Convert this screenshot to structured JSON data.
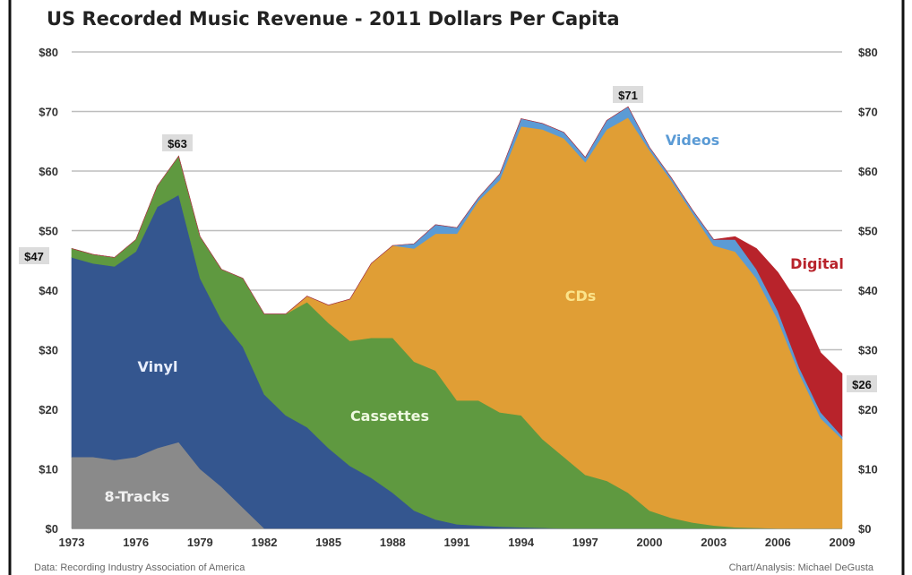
{
  "chart_data": {
    "type": "area",
    "stacked": true,
    "title": "US Recorded Music Revenue - 2011 Dollars Per Capita",
    "xlabel": "",
    "ylabel": "",
    "ylim": [
      0,
      80
    ],
    "xlim": [
      1973,
      2009
    ],
    "grid": true,
    "y_ticks": [
      "$0",
      "$10",
      "$20",
      "$30",
      "$40",
      "$50",
      "$60",
      "$70",
      "$80"
    ],
    "x_ticks": [
      "1973",
      "1976",
      "1979",
      "1982",
      "1985",
      "1988",
      "1991",
      "1994",
      "1997",
      "2000",
      "2003",
      "2006",
      "2009"
    ],
    "x": [
      1973,
      1974,
      1975,
      1976,
      1977,
      1978,
      1979,
      1980,
      1981,
      1982,
      1983,
      1984,
      1985,
      1986,
      1987,
      1988,
      1989,
      1990,
      1991,
      1992,
      1993,
      1994,
      1995,
      1996,
      1997,
      1998,
      1999,
      2000,
      2001,
      2002,
      2003,
      2004,
      2005,
      2006,
      2007,
      2008,
      2009
    ],
    "series": [
      {
        "name": "8-Tracks",
        "color": "#8a8a8a",
        "label_color": "#f0f0f0",
        "values": [
          12,
          12,
          11.5,
          12,
          13.5,
          14.5,
          10,
          7,
          3.5,
          0,
          0,
          0,
          0,
          0,
          0,
          0,
          0,
          0,
          0,
          0,
          0,
          0,
          0,
          0,
          0,
          0,
          0,
          0,
          0,
          0,
          0,
          0,
          0,
          0,
          0,
          0,
          0
        ]
      },
      {
        "name": "Vinyl",
        "color": "#34568f",
        "label_color": "#e8eefc",
        "values": [
          33.5,
          32.5,
          32.5,
          34.5,
          40.5,
          41.5,
          32,
          28,
          27,
          22.5,
          19,
          17,
          13.5,
          10.5,
          8.5,
          6,
          3,
          1.5,
          0.7,
          0.5,
          0.3,
          0.2,
          0.1,
          0,
          0,
          0,
          0,
          0,
          0,
          0,
          0,
          0,
          0,
          0,
          0,
          0,
          0
        ]
      },
      {
        "name": "Cassettes",
        "color": "#5f9940",
        "label_color": "#eef8e0",
        "values": [
          1.5,
          1.5,
          1.5,
          2,
          3.5,
          6.5,
          7,
          8.5,
          11.5,
          13.5,
          17,
          21,
          21,
          21,
          23.5,
          26,
          25,
          25,
          20.8,
          21,
          19.2,
          18.8,
          14.9,
          12,
          9,
          8,
          6,
          3,
          1.8,
          1,
          0.5,
          0.2,
          0.1,
          0,
          0,
          0,
          0
        ]
      },
      {
        "name": "CDs",
        "color": "#e09e35",
        "label_color": "#fbe38a",
        "values": [
          0,
          0,
          0,
          0,
          0,
          0,
          0,
          0,
          0,
          0,
          0,
          1,
          3,
          7,
          12.5,
          15.5,
          19,
          23,
          28,
          33.5,
          39,
          48.5,
          52,
          53.5,
          52.5,
          59,
          63,
          60.5,
          56.7,
          52,
          47,
          46.3,
          41.9,
          35,
          26,
          18.5,
          15
        ]
      },
      {
        "name": "Videos",
        "color": "#5b9bd5",
        "label_color": "#5b9bd5",
        "values": [
          0,
          0,
          0,
          0,
          0,
          0,
          0,
          0,
          0,
          0,
          0,
          0,
          0,
          0,
          0,
          0,
          0.8,
          1.5,
          1,
          0.5,
          1,
          1.3,
          1,
          1,
          0.8,
          1.5,
          1.8,
          0.5,
          0.5,
          0.5,
          1,
          2,
          1.5,
          1.5,
          1,
          1,
          0.5
        ]
      },
      {
        "name": "Digital",
        "color": "#b8232b",
        "label_color": "#b8232b",
        "values": [
          0,
          0,
          0,
          0,
          0,
          0,
          0,
          0,
          0,
          0,
          0,
          0,
          0,
          0,
          0,
          0,
          0,
          0,
          0,
          0,
          0,
          0,
          0,
          0,
          0,
          0,
          0,
          0,
          0,
          0,
          0,
          0.5,
          3.5,
          6.5,
          10.5,
          10,
          10.5
        ]
      }
    ],
    "annotations": [
      {
        "text": "$47",
        "year": 1973,
        "value": 47
      },
      {
        "text": "$63",
        "year": 1978,
        "value": 63
      },
      {
        "text": "$71",
        "year": 1999,
        "value": 71
      },
      {
        "text": "$26",
        "year": 2009,
        "value": 26
      }
    ],
    "source": "Data: Recording Industry Association of America",
    "credit": "Chart/Analysis: Michael DeGusta"
  }
}
